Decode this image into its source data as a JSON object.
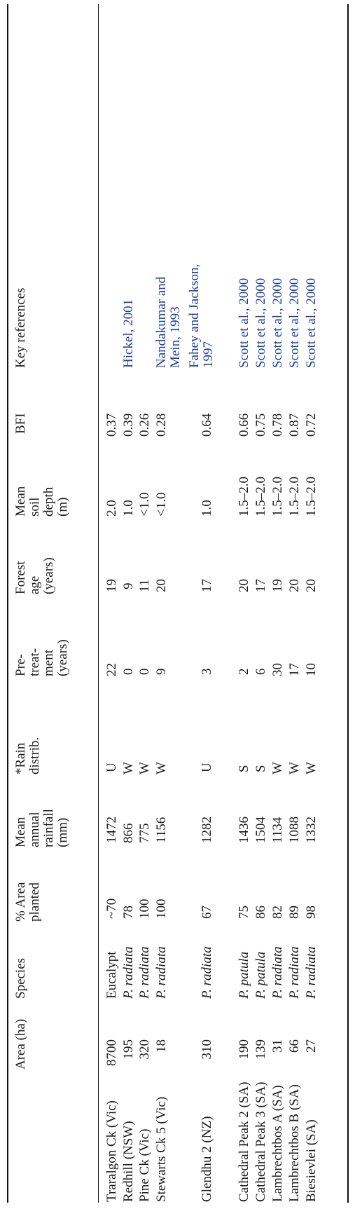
{
  "headers": {
    "site": "",
    "area": "Area (ha)",
    "species": "Species",
    "planted": "% Area planted",
    "rainfall": "Mean annual rainfall (mm)",
    "distrib": "*Rain distrib.",
    "pretreat": "Pre-treat- ment (years)",
    "forest_age": "Forest age (years)",
    "soil": "Mean soil depth (m)",
    "bfi": "BFI",
    "refs": "Key references"
  },
  "rows": [
    {
      "site": "Traralgon Ck (Vic)",
      "area": "8700",
      "species": "Eucalypt",
      "planted": "~70",
      "rainfall": "1472",
      "distrib": "U",
      "pretreat": "22",
      "forest_age": "19",
      "soil": "2.0",
      "bfi": "0.37",
      "ref": ""
    },
    {
      "site": "Redhill (NSW)",
      "area": "195",
      "species": "P. radiata",
      "planted": "78",
      "rainfall": "866",
      "distrib": "W",
      "pretreat": "0",
      "forest_age": "9",
      "soil": "1.0",
      "bfi": "0.39",
      "ref": "Hickel, 2001"
    },
    {
      "site": "Pine Ck (Vic)",
      "area": "320",
      "species": "P. radiata",
      "planted": "100",
      "rainfall": "775",
      "distrib": "W",
      "pretreat": "0",
      "forest_age": "11",
      "soil": "<1.0",
      "bfi": "0.26",
      "ref": ""
    },
    {
      "site": "Stewarts Ck 5 (Vic)",
      "area": "18",
      "species": "P. radiata",
      "planted": "100",
      "rainfall": "1156",
      "distrib": "W",
      "pretreat": "9",
      "forest_age": "20",
      "soil": "<1.0",
      "bfi": "0.28",
      "ref": "Nandakumar and Mein, 1993"
    },
    {
      "site": "Glendhu 2 (NZ)",
      "area": "310",
      "species": "P. radiata",
      "planted": "67",
      "rainfall": "1282",
      "distrib": "U",
      "pretreat": "3",
      "forest_age": "17",
      "soil": "1.0",
      "bfi": "0.64",
      "ref": "Fahey and Jackson, 1997"
    },
    {
      "site": "Cathedral Peak 2 (SA)",
      "area": "190",
      "species": "P. patula",
      "planted": "75",
      "rainfall": "1436",
      "distrib": "S",
      "pretreat": "2",
      "forest_age": "20",
      "soil": "1.5–2.0",
      "bfi": "0.66",
      "ref": "Scott et al., 2000"
    },
    {
      "site": "Cathedral Peak 3 (SA)",
      "area": "139",
      "species": "P. patula",
      "planted": "86",
      "rainfall": "1504",
      "distrib": "S",
      "pretreat": "6",
      "forest_age": "17",
      "soil": "1.5–2.0",
      "bfi": "0.75",
      "ref": "Scott et al., 2000"
    },
    {
      "site": "Lambrechtbos A (SA)",
      "area": "31",
      "species": "P. radiata",
      "planted": "82",
      "rainfall": "1134",
      "distrib": "W",
      "pretreat": "30",
      "forest_age": "19",
      "soil": "1.5–2.0",
      "bfi": "0.78",
      "ref": "Scott et al., 2000"
    },
    {
      "site": "Lambrechtbos B (SA)",
      "area": "66",
      "species": "P. radiata",
      "planted": "89",
      "rainfall": "1088",
      "distrib": "W",
      "pretreat": "17",
      "forest_age": "20",
      "soil": "1.5–2.0",
      "bfi": "0.87",
      "ref": "Scott et al., 2000"
    },
    {
      "site": "Biesievlei (SA)",
      "area": "27",
      "species": "P. radiata",
      "planted": "98",
      "rainfall": "1332",
      "distrib": "W",
      "pretreat": "10",
      "forest_age": "20",
      "soil": "1.5–2.0",
      "bfi": "0.72",
      "ref": "Scott et al., 2000"
    }
  ],
  "colors": {
    "text": "#1a1a1a",
    "reference_link": "#1f3f9e",
    "rule": "#111111"
  }
}
